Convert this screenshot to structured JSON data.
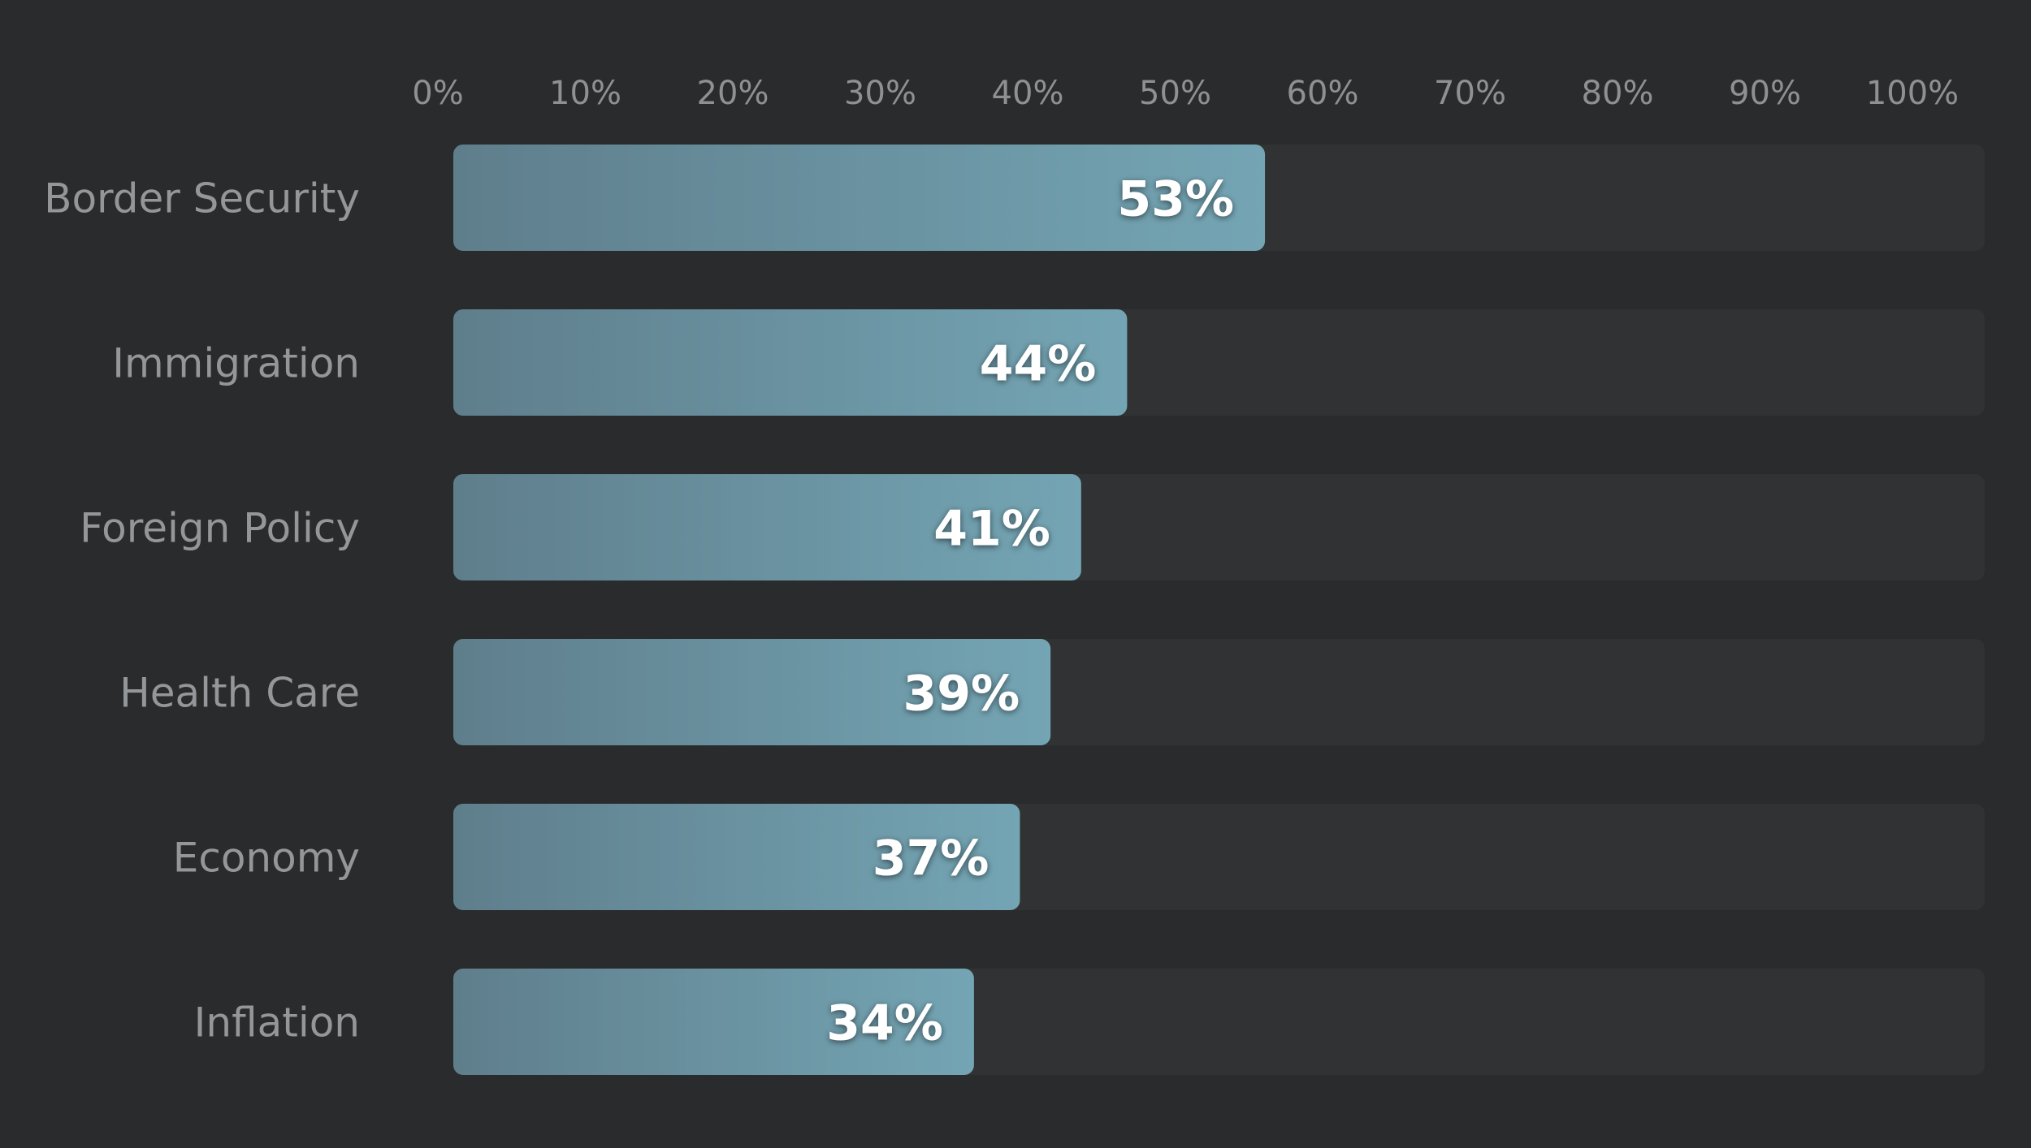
{
  "chart_data": {
    "type": "bar",
    "orientation": "horizontal",
    "categories": [
      "Border Security",
      "Immigration",
      "Foreign Policy",
      "Health Care",
      "Economy",
      "Inflation"
    ],
    "values": [
      53,
      44,
      41,
      39,
      37,
      34
    ],
    "value_labels": [
      "53%",
      "44%",
      "41%",
      "39%",
      "37%",
      "34%"
    ],
    "xlim": [
      0,
      100
    ],
    "x_ticks": [
      "0%",
      "10%",
      "20%",
      "30%",
      "40%",
      "50%",
      "60%",
      "70%",
      "80%",
      "90%",
      "100%"
    ],
    "x_axis_position": "top",
    "grid": false,
    "legend": "none",
    "colors": {
      "background": "#2a2b2c",
      "track": "#313233",
      "bar_start": "#5f7e8c",
      "bar_end": "#74a5b4",
      "value_text": "#ffffff",
      "label_text": "#93979a"
    }
  }
}
